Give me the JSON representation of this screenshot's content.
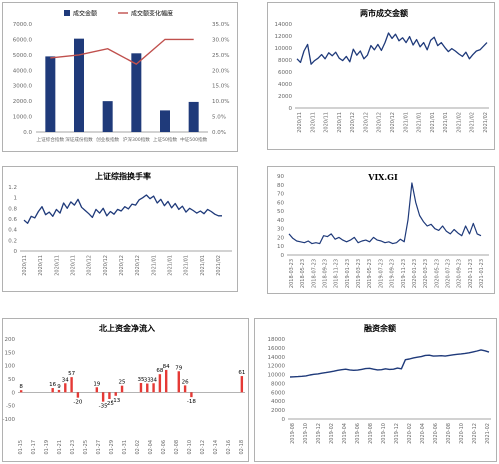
{
  "colors": {
    "navy": "#1f3a7a",
    "line_red": "#c0504d",
    "bar_red": "#e53935",
    "axis": "#666666",
    "grid": "#d9d9d9"
  },
  "chart_data": [
    {
      "id": "panel1",
      "type": "bar",
      "title": "",
      "categories": [
        "上证综合指数",
        "深证成份指数",
        "创业板指数",
        "沪深300指数",
        "上证50指数",
        "中证500指数"
      ],
      "left_axis": {
        "ylim": [
          0,
          7000
        ],
        "ticks": [
          "0.0",
          "1000.0",
          "2000.0",
          "3000.0",
          "4000.0",
          "5000.0",
          "6000.0",
          "7000.0"
        ]
      },
      "right_axis": {
        "ylim": [
          0,
          35
        ],
        "ticks": [
          "0.0%",
          "5.0%",
          "10.0%",
          "15.0%",
          "20.0%",
          "25.0%",
          "30.0%",
          "35.0%"
        ]
      },
      "series": [
        {
          "name": "成交金额",
          "kind": "bar",
          "axis": "left",
          "values": [
            4900,
            6050,
            2000,
            5100,
            1400,
            1950
          ]
        },
        {
          "name": "成交额变化幅度",
          "kind": "line",
          "axis": "right",
          "values": [
            24.0,
            25.0,
            27.0,
            22.0,
            30.0,
            30.0
          ]
        }
      ],
      "legend_position": "top"
    },
    {
      "id": "panel2",
      "type": "line",
      "title": "两市成交金额",
      "ylim": [
        0,
        14000
      ],
      "yticks": [
        "0",
        "2000",
        "4000",
        "6000",
        "8000",
        "10000",
        "12000",
        "14000"
      ],
      "xticks": [
        "2020/11",
        "2020/11",
        "2020/11",
        "2020/11",
        "2020/12",
        "2020/12",
        "2020/12",
        "2020/12",
        "2021/01",
        "2021/01",
        "2021/01",
        "2021/01",
        "2021/02",
        "2021/02",
        "2021/02"
      ],
      "values": [
        8200,
        7600,
        9500,
        10600,
        7300,
        7900,
        8300,
        8900,
        8200,
        9200,
        8700,
        9300,
        8300,
        7900,
        8600,
        7700,
        9800,
        8800,
        9500,
        8200,
        8800,
        10400,
        9700,
        10600,
        9600,
        10900,
        12500,
        11600,
        12300,
        11200,
        11700,
        10900,
        11900,
        10500,
        11400,
        10200,
        10900,
        9700,
        11300,
        11800,
        10400,
        10900,
        10100,
        9400,
        9900,
        9500,
        9000,
        8600,
        9300,
        8200,
        8900,
        9500,
        9700,
        10300,
        10900
      ]
    },
    {
      "id": "panel3",
      "type": "line",
      "title": "上证综指换手率",
      "ylim": [
        0,
        1.2
      ],
      "yticks": [
        "0",
        "0.2",
        "0.4",
        "0.6",
        "0.8",
        "1",
        "1.2"
      ],
      "xticks": [
        "2020/11",
        "2020/11",
        "2020/11",
        "2020/11",
        "2020/12",
        "2020/12",
        "2020/12",
        "2020/12",
        "2021/01",
        "2021/01",
        "2021/01",
        "2021/01",
        "2021/02"
      ],
      "values": [
        0.58,
        0.52,
        0.65,
        0.62,
        0.74,
        0.83,
        0.68,
        0.73,
        0.65,
        0.78,
        0.71,
        0.9,
        0.8,
        0.92,
        0.86,
        0.97,
        0.82,
        0.76,
        0.7,
        0.63,
        0.78,
        0.71,
        0.8,
        0.66,
        0.74,
        0.69,
        0.78,
        0.75,
        0.83,
        0.79,
        0.88,
        0.86,
        0.96,
        1.0,
        1.05,
        0.98,
        1.03,
        0.9,
        0.97,
        0.85,
        0.93,
        0.81,
        0.89,
        0.78,
        0.84,
        0.73,
        0.8,
        0.76,
        0.71,
        0.75,
        0.7,
        0.78,
        0.74,
        0.69,
        0.66,
        0.66
      ]
    },
    {
      "id": "panel4",
      "type": "line",
      "title": "VIX.GI",
      "ylim": [
        0,
        90
      ],
      "yticks": [
        "0",
        "10",
        "20",
        "30",
        "40",
        "50",
        "60",
        "70",
        "80",
        "90"
      ],
      "xticks": [
        "2018-03-23",
        "2018-05-23",
        "2018-07-23",
        "2018-09-23",
        "2018-11-23",
        "2019-01-23",
        "2019-03-23",
        "2019-05-23",
        "2019-07-23",
        "2019-09-23",
        "2019-11-23",
        "2020-01-23",
        "2020-03-23",
        "2020-05-23",
        "2020-07-23",
        "2020-09-23",
        "2020-11-23",
        "2021-01-23"
      ],
      "values": [
        24,
        19,
        16,
        15,
        14,
        16,
        13,
        14,
        13,
        22,
        21,
        24,
        18,
        20,
        17,
        15,
        17,
        20,
        14,
        16,
        17,
        15,
        20,
        17,
        16,
        14,
        15,
        13,
        14,
        18,
        15,
        40,
        82,
        60,
        45,
        38,
        33,
        35,
        30,
        28,
        33,
        27,
        24,
        29,
        25,
        22,
        33,
        24,
        36,
        24,
        22
      ]
    },
    {
      "id": "panel5",
      "type": "bar",
      "title": "北上资金净流入",
      "ylim": [
        -100,
        200
      ],
      "yticks": [
        "-100",
        "-50",
        "0",
        "50",
        "100",
        "150",
        "200"
      ],
      "xticks": [
        "01-15",
        "01-17",
        "01-19",
        "01-21",
        "01-23",
        "01-25",
        "01-27",
        "01-29",
        "01-31",
        "02-02",
        "02-04",
        "02-06",
        "02-08",
        "02-10",
        "02-12",
        "02-14",
        "02-16",
        "02-18"
      ],
      "values": [
        8,
        0,
        0,
        0,
        0,
        16,
        9,
        34,
        57,
        -20,
        0,
        0,
        19,
        -35,
        -25,
        -13,
        25,
        0,
        0,
        35,
        33,
        34,
        68,
        84,
        0,
        79,
        26,
        -18,
        0,
        0,
        0,
        0,
        0,
        0,
        0,
        61
      ],
      "data_labels": [
        {
          "i": 0,
          "text": "8"
        },
        {
          "i": 5,
          "text": "16"
        },
        {
          "i": 6,
          "text": "9"
        },
        {
          "i": 7,
          "text": "34"
        },
        {
          "i": 8,
          "text": "57"
        },
        {
          "i": 9,
          "text": "-20"
        },
        {
          "i": 12,
          "text": "19"
        },
        {
          "i": 13,
          "text": "-35"
        },
        {
          "i": 14,
          "text": "-25"
        },
        {
          "i": 15,
          "text": "-13"
        },
        {
          "i": 16,
          "text": "25"
        },
        {
          "i": 19,
          "text": "35"
        },
        {
          "i": 20,
          "text": "33"
        },
        {
          "i": 21,
          "text": "34"
        },
        {
          "i": 22,
          "text": "68"
        },
        {
          "i": 23,
          "text": "84"
        },
        {
          "i": 25,
          "text": "79"
        },
        {
          "i": 26,
          "text": "26"
        },
        {
          "i": 27,
          "text": "-18"
        },
        {
          "i": 35,
          "text": "61"
        }
      ]
    },
    {
      "id": "panel6",
      "type": "line",
      "title": "融资余额",
      "ylim": [
        0,
        18000
      ],
      "yticks": [
        "0",
        "2000",
        "4000",
        "6000",
        "8000",
        "10000",
        "12000",
        "14000",
        "16000",
        "18000"
      ],
      "xticks": [
        "2019-08",
        "2019-10",
        "2019-12",
        "2019-02",
        "2019-04",
        "2019-06",
        "2019-08",
        "2019-10",
        "2019-12",
        "2020-02",
        "2020-04",
        "2020-06",
        "2020-08",
        "2020-10",
        "2020-12",
        "2021-02"
      ],
      "values": [
        9450,
        9500,
        9550,
        9600,
        9700,
        9900,
        10050,
        10150,
        10300,
        10450,
        10600,
        10750,
        10950,
        11100,
        11200,
        11050,
        10950,
        11000,
        11150,
        11350,
        11400,
        11200,
        11050,
        11100,
        11300,
        11150,
        11200,
        11450,
        11300,
        13350,
        13500,
        13750,
        13900,
        14050,
        14300,
        14350,
        14150,
        14200,
        14250,
        14150,
        14300,
        14450,
        14550,
        14650,
        14750,
        14900,
        15100,
        15300,
        15550,
        15350,
        15050
      ]
    }
  ]
}
